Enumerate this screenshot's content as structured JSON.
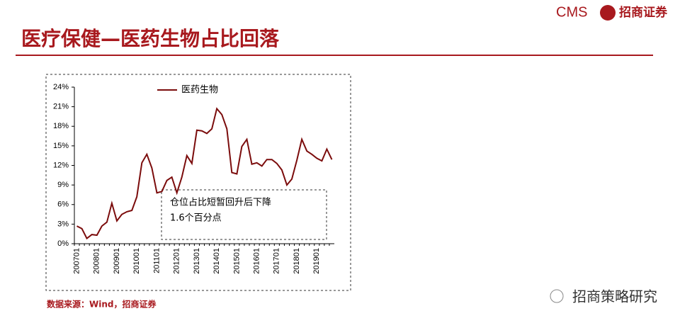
{
  "header": {
    "title": "医疗保健—医药生物占比回落",
    "logo_mark": "CMS",
    "logo_text": "招商证券"
  },
  "chart_data": {
    "type": "line",
    "categories": [
      "200701",
      null,
      null,
      null,
      "200801",
      null,
      null,
      null,
      "200901",
      null,
      null,
      null,
      "201001",
      null,
      null,
      null,
      "201101",
      null,
      null,
      null,
      "201201",
      null,
      null,
      null,
      "201301",
      null,
      null,
      null,
      "201401",
      null,
      null,
      null,
      "201501",
      null,
      null,
      null,
      "201601",
      null,
      null,
      null,
      "201701",
      null,
      null,
      null,
      "201801",
      null,
      null,
      null,
      "201901",
      null,
      null,
      null
    ],
    "series": [
      {
        "name": "医药生物",
        "color": "#7b0c0c",
        "values": [
          2.7,
          2.3,
          0.8,
          1.4,
          1.3,
          2.7,
          3.3,
          6.2,
          3.5,
          4.5,
          4.9,
          5.1,
          7.2,
          12.4,
          13.7,
          11.6,
          7.8,
          8.0,
          9.7,
          10.2,
          7.8,
          10.2,
          13.5,
          12.3,
          17.4,
          17.3,
          16.9,
          17.6,
          20.7,
          19.8,
          17.6,
          10.9,
          10.7,
          14.9,
          16.0,
          12.2,
          12.4,
          11.9,
          12.9,
          12.9,
          12.3,
          11.3,
          9.0,
          9.9,
          12.8,
          16.0,
          14.2,
          13.7,
          13.1,
          12.7,
          14.5,
          12.9
        ]
      }
    ],
    "ylim": [
      0,
      24
    ],
    "yticks": [
      {
        "value": 0,
        "label": "0%"
      },
      {
        "value": 3,
        "label": "3%"
      },
      {
        "value": 6,
        "label": "6%"
      },
      {
        "value": 9,
        "label": "9%"
      },
      {
        "value": 12,
        "label": "12%"
      },
      {
        "value": 15,
        "label": "15%"
      },
      {
        "value": 18,
        "label": "18%"
      },
      {
        "value": 21,
        "label": "21%"
      },
      {
        "value": 24,
        "label": "24%"
      }
    ],
    "grid": false,
    "legend": "top",
    "annotation": [
      "仓位占比短暂回升后下降",
      "1.6个百分点"
    ]
  },
  "source": "数据来源：Wind，招商证券",
  "watermark": "招商策略研究"
}
